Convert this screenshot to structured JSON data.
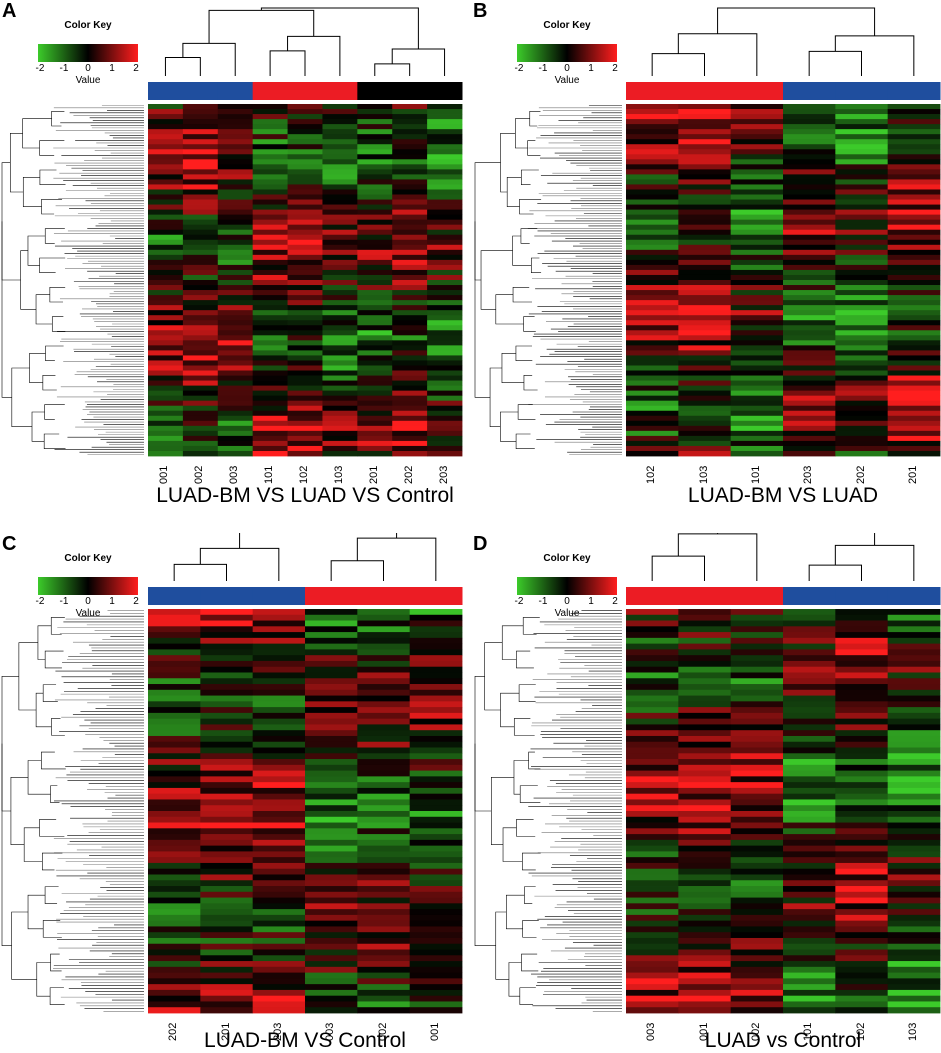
{
  "colors": {
    "low": "#3ccb2a",
    "mid": "#000000",
    "high": "#ff1e1e",
    "group_blue": "#1f4e9e",
    "group_red": "#ec1c24",
    "group_black": "#000000"
  },
  "color_key": {
    "title": "Color Key",
    "value_label": "Value",
    "ticks": [
      "-2",
      "-1",
      "0",
      "1",
      "2"
    ],
    "range": [
      -2,
      2
    ]
  },
  "chart_data": [
    {
      "type": "heatmap",
      "panel": "A",
      "title": "LUAD-BM VS LUAD VS Control",
      "columns": [
        "001",
        "002",
        "003",
        "101",
        "102",
        "103",
        "201",
        "202",
        "203"
      ],
      "column_groups": [
        "blue",
        "blue",
        "blue",
        "red",
        "red",
        "red",
        "black",
        "black",
        "black"
      ],
      "row_dendrogram": true,
      "column_dendrogram": true,
      "value_range": [
        -2,
        2
      ]
    },
    {
      "type": "heatmap",
      "panel": "B",
      "title": "LUAD-BM VS LUAD",
      "columns": [
        "102",
        "103",
        "101",
        "203",
        "202",
        "201"
      ],
      "column_groups": [
        "red",
        "red",
        "red",
        "blue",
        "blue",
        "blue"
      ],
      "row_dendrogram": true,
      "column_dendrogram": true,
      "value_range": [
        -2,
        2
      ]
    },
    {
      "type": "heatmap",
      "panel": "C",
      "title": "LUAD-BM VS Control",
      "columns": [
        "202",
        "201",
        "203",
        "003",
        "002",
        "001"
      ],
      "column_groups": [
        "blue",
        "blue",
        "blue",
        "red",
        "red",
        "red"
      ],
      "row_dendrogram": true,
      "column_dendrogram": true,
      "value_range": [
        -2,
        2
      ]
    },
    {
      "type": "heatmap",
      "panel": "D",
      "title": "LUAD vs Control",
      "columns": [
        "003",
        "001",
        "002",
        "101",
        "102",
        "103"
      ],
      "column_groups": [
        "red",
        "red",
        "red",
        "blue",
        "blue",
        "blue"
      ],
      "row_dendrogram": true,
      "column_dendrogram": true,
      "value_range": [
        -2,
        2
      ]
    }
  ]
}
